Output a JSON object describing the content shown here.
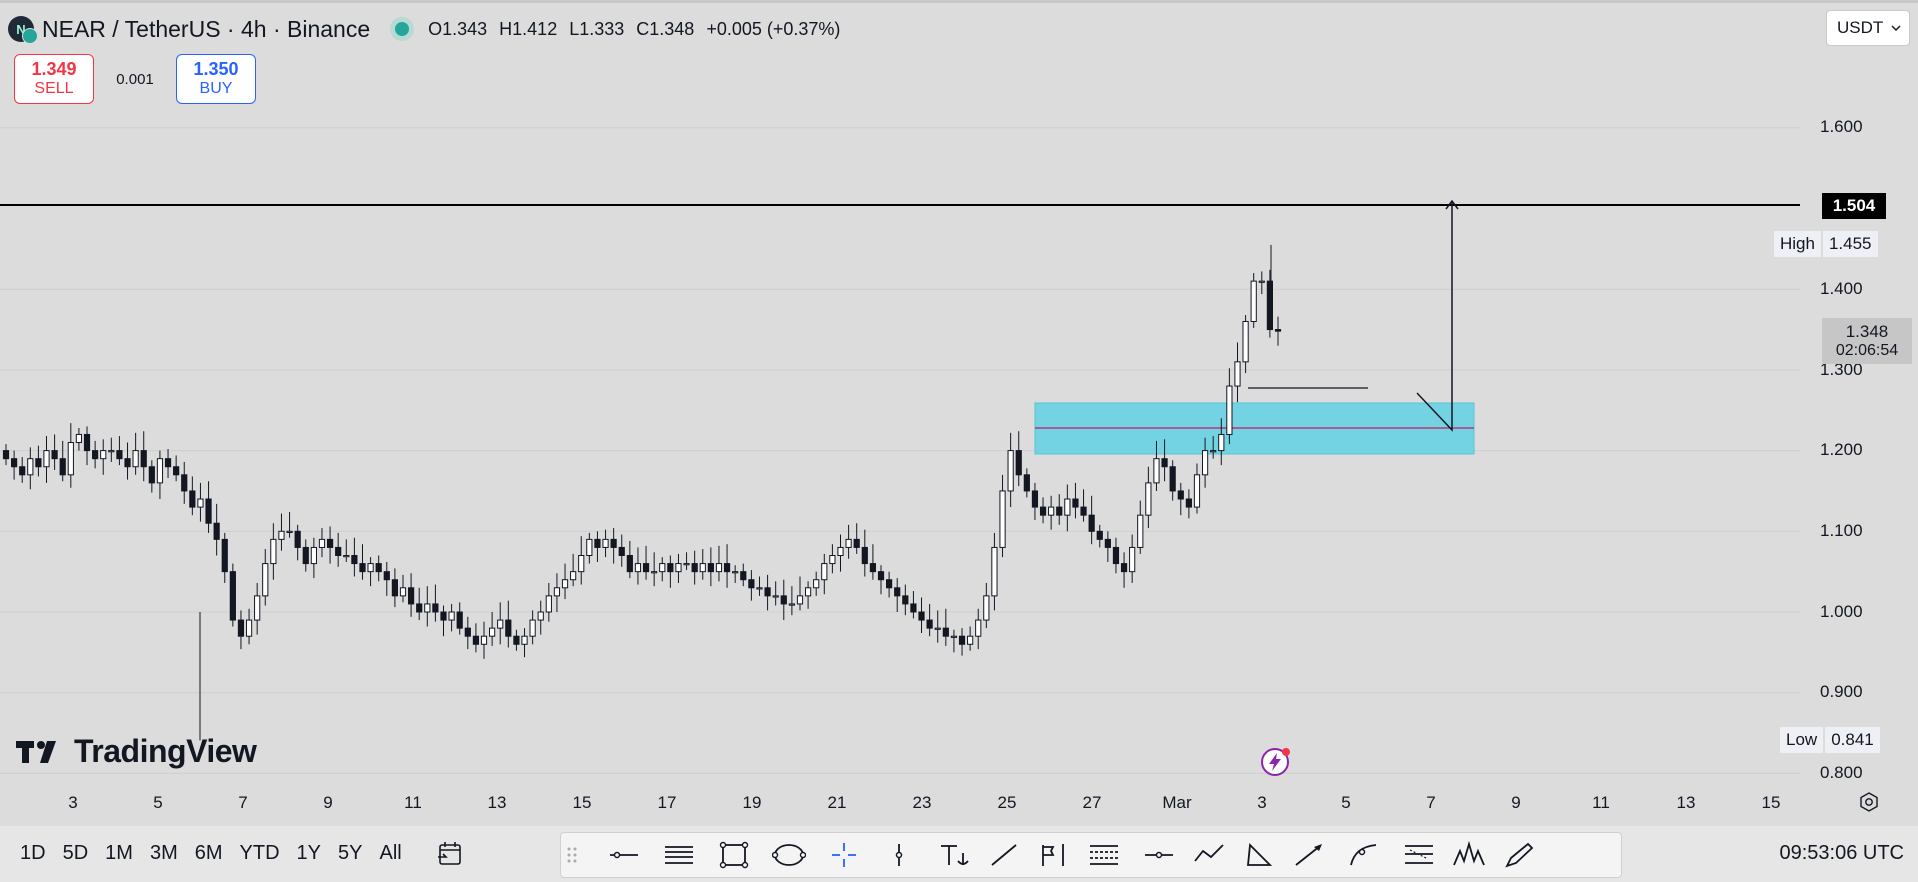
{
  "header": {
    "symbol_icon_letter": "N",
    "title": "NEAR / TetherUS · 4h · Binance",
    "ohlc": {
      "open": "O1.343",
      "high": "H1.412",
      "low": "L1.333",
      "close": "C1.348",
      "change": "+0.005 (+0.37%)"
    }
  },
  "trade": {
    "sell_price": "1.349",
    "sell_label": "SELL",
    "spread": "0.001",
    "buy_price": "1.350",
    "buy_label": "BUY"
  },
  "currency_selector": {
    "value": "USDT",
    "chevron": "chevron-down-icon"
  },
  "price_axis": {
    "labels": [
      "1.600",
      "1.400",
      "1.300",
      "1.200",
      "1.100",
      "1.000",
      "0.900",
      "0.800"
    ],
    "target_line_label": "1.504",
    "high_label": "High",
    "high_value": "1.455",
    "low_label": "Low",
    "low_value": "0.841",
    "last_price": "1.348",
    "countdown": "02:06:54"
  },
  "time_axis": {
    "labels": [
      "3",
      "5",
      "7",
      "9",
      "11",
      "13",
      "15",
      "17",
      "19",
      "21",
      "23",
      "25",
      "27",
      "Mar",
      "3",
      "5",
      "7",
      "9",
      "11",
      "13",
      "15"
    ]
  },
  "bottom_bar": {
    "ranges": [
      "1D",
      "5D",
      "1M",
      "3M",
      "6M",
      "YTD",
      "1Y",
      "5Y",
      "All"
    ],
    "clock": "09:53:06 UTC",
    "drawing_tools": [
      "drag-handle-icon",
      "horizontal-line-icon",
      "parallel-lines-icon",
      "rectangle-icon",
      "ellipse-icon",
      "crosshair-icon",
      "vertical-line-icon",
      "text-icon",
      "trend-line-icon",
      "flag-icon",
      "fib-channel-icon",
      "horizontal-ray-icon",
      "zigzag-icon",
      "triangle-icon",
      "arrow-icon",
      "curve-icon",
      "gann-icon",
      "head-shoulders-icon",
      "brush-icon"
    ]
  },
  "branding": {
    "logo_text": "TradingView"
  },
  "colors": {
    "up": "#ffffff",
    "down": "#131722",
    "zone_fill": "#6fd3e3",
    "zone_mid": "#c2185b",
    "target_line": "#000000",
    "sell": "#f23645",
    "buy": "#2962ff"
  },
  "chart_data": {
    "type": "candlestick",
    "symbol": "NEAR / TetherUS",
    "interval": "4h",
    "exchange": "Binance",
    "y_range": [
      0.76,
      1.69
    ],
    "y_ticks": [
      0.8,
      0.9,
      1.0,
      1.1,
      1.2,
      1.3,
      1.4,
      1.6
    ],
    "x_ticks": [
      "3",
      "5",
      "7",
      "9",
      "11",
      "13",
      "15",
      "17",
      "19",
      "21",
      "23",
      "25",
      "27",
      "Mar",
      "3",
      "5",
      "7",
      "9",
      "11",
      "13",
      "15"
    ],
    "last_close": 1.348,
    "session_high": 1.455,
    "session_low": 0.841,
    "horizontal_level": 1.504,
    "demand_zone": {
      "low": 1.195,
      "high": 1.26,
      "mid": 1.227
    },
    "candle_closes_approx": [
      1.19,
      1.18,
      1.17,
      1.19,
      1.18,
      1.2,
      1.19,
      1.17,
      1.21,
      1.22,
      1.2,
      1.19,
      1.2,
      1.2,
      1.19,
      1.18,
      1.2,
      1.18,
      1.16,
      1.19,
      1.18,
      1.17,
      1.15,
      1.13,
      1.14,
      1.11,
      1.09,
      1.05,
      0.99,
      0.97,
      0.99,
      1.02,
      1.06,
      1.09,
      1.1,
      1.1,
      1.08,
      1.06,
      1.08,
      1.09,
      1.08,
      1.07,
      1.07,
      1.06,
      1.05,
      1.06,
      1.05,
      1.04,
      1.02,
      1.03,
      1.01,
      1.0,
      1.01,
      1.0,
      0.99,
      1.0,
      0.98,
      0.97,
      0.96,
      0.97,
      0.98,
      0.99,
      0.97,
      0.96,
      0.97,
      0.99,
      1.0,
      1.02,
      1.03,
      1.04,
      1.05,
      1.07,
      1.09,
      1.08,
      1.09,
      1.08,
      1.07,
      1.05,
      1.06,
      1.05,
      1.05,
      1.06,
      1.05,
      1.06,
      1.06,
      1.05,
      1.06,
      1.05,
      1.06,
      1.05,
      1.05,
      1.04,
      1.03,
      1.03,
      1.02,
      1.02,
      1.01,
      1.01,
      1.02,
      1.03,
      1.04,
      1.06,
      1.07,
      1.08,
      1.09,
      1.08,
      1.06,
      1.05,
      1.04,
      1.03,
      1.02,
      1.01,
      1.0,
      0.99,
      0.98,
      0.98,
      0.97,
      0.97,
      0.96,
      0.97,
      0.99,
      1.02,
      1.08,
      1.15,
      1.2,
      1.17,
      1.15,
      1.13,
      1.12,
      1.13,
      1.12,
      1.14,
      1.13,
      1.12,
      1.1,
      1.09,
      1.08,
      1.06,
      1.05,
      1.08,
      1.12,
      1.16,
      1.19,
      1.18,
      1.15,
      1.14,
      1.13,
      1.17,
      1.2,
      1.2,
      1.22,
      1.28,
      1.31,
      1.36,
      1.41,
      1.41,
      1.35,
      1.348
    ]
  }
}
